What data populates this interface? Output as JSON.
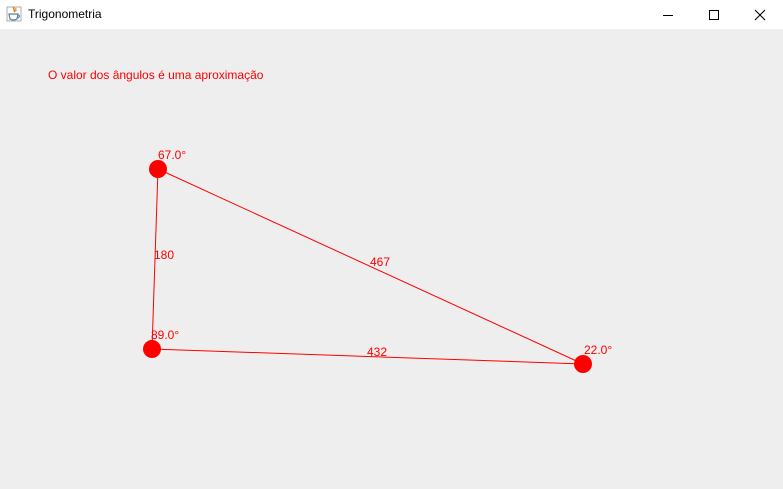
{
  "window": {
    "title": "Trigonometria",
    "icons": {
      "app": "java-icon",
      "minimize": "minimize-icon",
      "maximize": "maximize-icon",
      "close": "close-icon"
    }
  },
  "note": "O valor dos ângulos é uma aproximação",
  "colors": {
    "accent": "#ff0000",
    "background": "#eeeeee",
    "titlebar": "#ffffff"
  },
  "triangle": {
    "vertices": [
      {
        "id": "top",
        "angle_label": "67.0°"
      },
      {
        "id": "bottom-left",
        "angle_label": "89.0°"
      },
      {
        "id": "right",
        "angle_label": "22.0°"
      }
    ],
    "sides": [
      {
        "id": "left",
        "length_label": "180"
      },
      {
        "id": "hypotenuse",
        "length_label": "467"
      },
      {
        "id": "base",
        "length_label": "432"
      }
    ]
  }
}
